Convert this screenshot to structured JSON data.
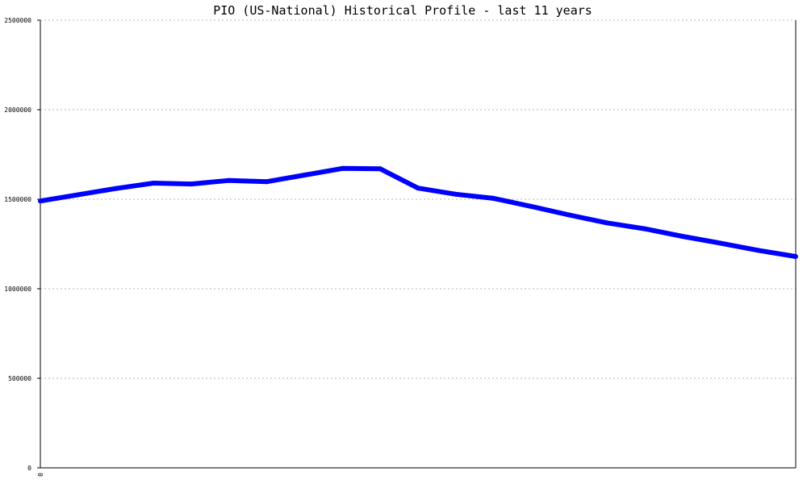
{
  "chart_data": {
    "type": "line",
    "title": "PIO (US-National) Historical Profile - last 11 years",
    "xlabel": "",
    "ylabel": "",
    "x_ticks": [
      "0"
    ],
    "y_ticks": [
      "0",
      "500000",
      "1000000",
      "1500000",
      "2000000",
      "2500000"
    ],
    "ylim": [
      0,
      2500000
    ],
    "grid": true,
    "legend": "none",
    "series": [
      {
        "color": "#0000ff",
        "values": [
          1490000,
          1525000,
          1560000,
          1590000,
          1585000,
          1605000,
          1598000,
          1635000,
          1672000,
          1670000,
          1562000,
          1528000,
          1505000,
          1460000,
          1412000,
          1368000,
          1335000,
          1293000,
          1255000,
          1215000,
          1180000
        ]
      }
    ]
  }
}
